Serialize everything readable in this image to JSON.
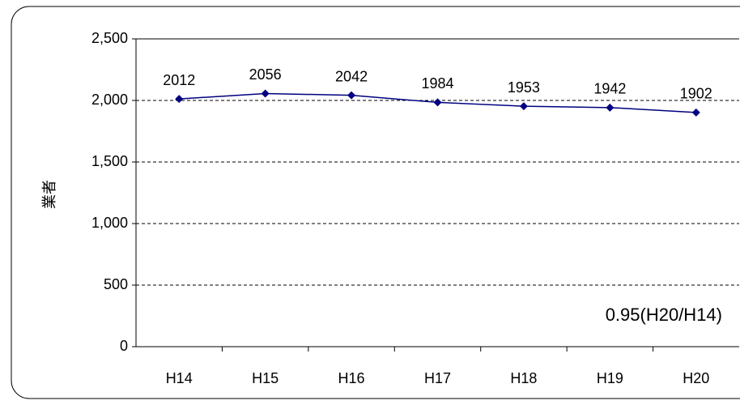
{
  "chart_data": {
    "type": "line",
    "y_label": "業者",
    "annotation": "0.95(H20/H14)",
    "categories": [
      "H14",
      "H15",
      "H16",
      "H17",
      "H18",
      "H19",
      "H20"
    ],
    "series": [
      {
        "name": null,
        "color": "#000080",
        "values": [
          2012,
          2056,
          2042,
          1984,
          1953,
          1942,
          1902
        ]
      }
    ],
    "ylim": [
      0,
      2500
    ],
    "yticks": [
      0,
      500,
      {
        "value": 1000,
        "label": "1,000"
      },
      {
        "value": 1500,
        "label": "1,500"
      },
      {
        "value": 2000,
        "label": "2,000"
      },
      {
        "value": 2500,
        "label": "2,500"
      }
    ],
    "grid": true
  }
}
